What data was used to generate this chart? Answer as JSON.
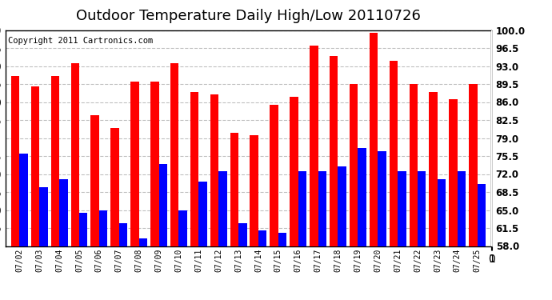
{
  "title": "Outdoor Temperature Daily High/Low 20110726",
  "copyright": "Copyright 2011 Cartronics.com",
  "dates": [
    "07/02",
    "07/03",
    "07/04",
    "07/05",
    "07/06",
    "07/07",
    "07/08",
    "07/09",
    "07/10",
    "07/11",
    "07/12",
    "07/13",
    "07/14",
    "07/15",
    "07/16",
    "07/17",
    "07/18",
    "07/19",
    "07/20",
    "07/21",
    "07/22",
    "07/23",
    "07/24",
    "07/25"
  ],
  "highs": [
    91,
    89,
    91,
    93.5,
    83.5,
    81,
    90,
    90,
    93.5,
    88,
    87.5,
    80,
    79.5,
    85.5,
    87,
    97,
    95,
    89.5,
    99.5,
    94,
    89.5,
    88,
    86.5,
    89.5
  ],
  "lows": [
    76,
    69.5,
    71,
    64.5,
    65,
    62.5,
    59.5,
    74,
    65,
    70.5,
    72.5,
    62.5,
    61,
    60.5,
    72.5,
    72.5,
    73.5,
    77,
    76.5,
    72.5,
    72.5,
    71,
    72.5,
    70
  ],
  "high_color": "#FF0000",
  "low_color": "#0000FF",
  "bg_color": "#FFFFFF",
  "plot_bg_color": "#FFFFFF",
  "grid_color": "#C0C0C0",
  "ylim": [
    58.0,
    100.0
  ],
  "yticks": [
    58.0,
    61.5,
    65.0,
    68.5,
    72.0,
    75.5,
    79.0,
    82.5,
    86.0,
    89.5,
    93.0,
    96.5,
    100.0
  ],
  "bar_width": 0.42,
  "title_fontsize": 13,
  "copyright_fontsize": 7.5
}
